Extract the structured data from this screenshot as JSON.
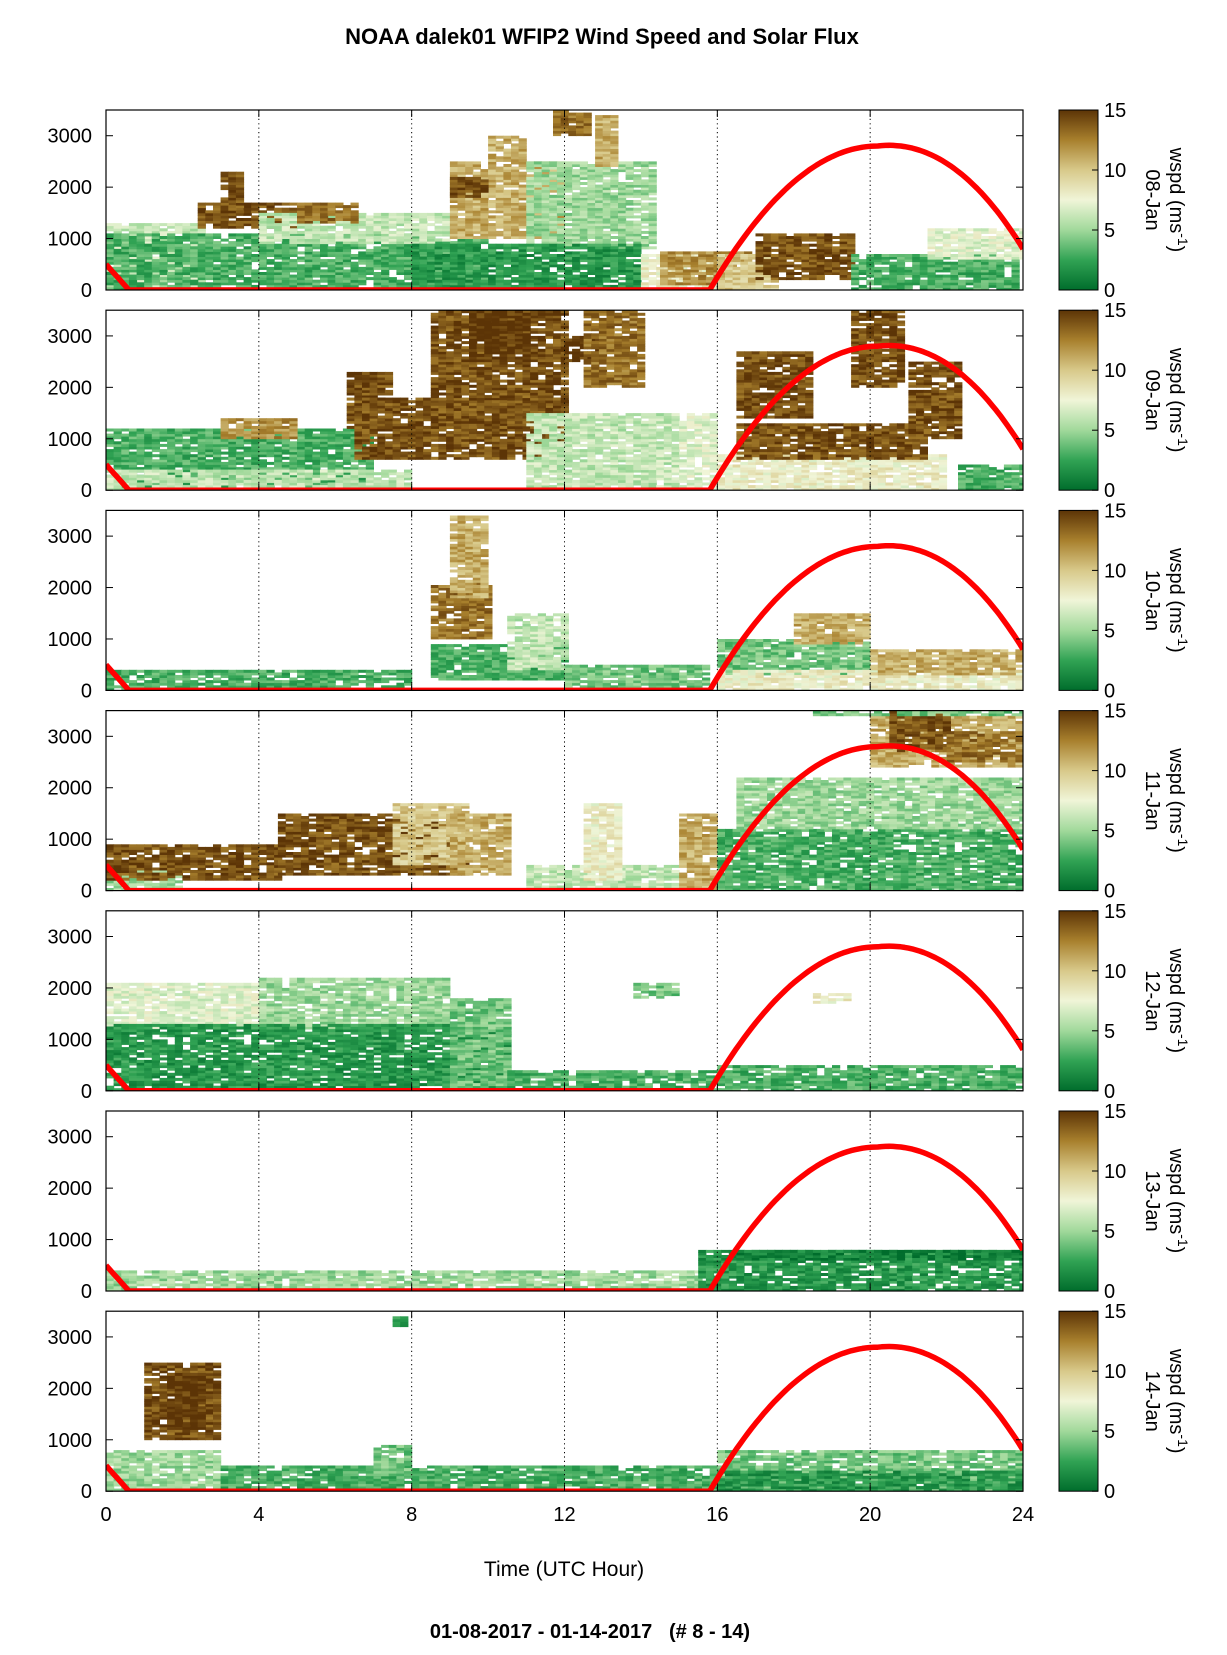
{
  "title": "NOAA dalek01 WFIP2 Wind Speed and Solar Flux",
  "xlabel": "Time (UTC Hour)",
  "footer": "01-08-2017 - 01-14-2017   (# 8 - 14)",
  "colorbar": {
    "label": "wspd (ms",
    "label_sup": "-1",
    "label_close": ")",
    "ticks": [
      "0",
      "5",
      "10",
      "15"
    ],
    "range": [
      0,
      15
    ],
    "colors": [
      "#006d2c",
      "#31a354",
      "#a1d99b",
      "#f0f5d8",
      "#d8c98a",
      "#a8802d",
      "#5c3406"
    ]
  },
  "colors": {
    "solar_flux": "#ff0000",
    "axis": "#000000",
    "grid": "#000000"
  },
  "chart_data": {
    "type": "heatmap",
    "x_range": [
      0,
      24
    ],
    "y_range": [
      0,
      3500
    ],
    "x_ticks": [
      "0",
      "4",
      "8",
      "12",
      "16",
      "20",
      "24"
    ],
    "y_ticks": [
      "0",
      "1000",
      "2000",
      "3000"
    ],
    "grid": "vertical dotted lines every 4 h",
    "overlay": {
      "name": "solar flux",
      "shape": "daytime arc",
      "start_value": 500,
      "zero_at_hour": 0.6,
      "rise_at_hour": 15.8,
      "peak_hour": 20.2,
      "peak_value": 2800,
      "end_value": 800
    },
    "panels": [
      {
        "label": "08-Jan",
        "layers": [
          {
            "x": [
              0,
              2.5
            ],
            "y": [
              0,
              1300
            ],
            "v": 6
          },
          {
            "x": [
              0,
              10
            ],
            "y": [
              0,
              1100
            ],
            "v": 3
          },
          {
            "x": [
              2.4,
              5
            ],
            "y": [
              1200,
              1700
            ],
            "v": 14
          },
          {
            "x": [
              3,
              3.6
            ],
            "y": [
              1500,
              2300
            ],
            "v": 14
          },
          {
            "x": [
              4,
              9
            ],
            "y": [
              900,
              1500
            ],
            "v": 6
          },
          {
            "x": [
              5,
              6.5
            ],
            "y": [
              1300,
              1700
            ],
            "v": 13
          },
          {
            "x": [
              9,
              12
            ],
            "y": [
              1000,
              2500
            ],
            "v": 11
          },
          {
            "x": [
              9,
              10
            ],
            "y": [
              1800,
              2200
            ],
            "v": 14
          },
          {
            "x": [
              10,
              11
            ],
            "y": [
              2500,
              3000
            ],
            "v": 11
          },
          {
            "x": [
              11,
              14.4
            ],
            "y": [
              800,
              2500
            ],
            "v": 5
          },
          {
            "x": [
              11.7,
              12.6
            ],
            "y": [
              3000,
              3500
            ],
            "v": 13
          },
          {
            "x": [
              12.8,
              13.3
            ],
            "y": [
              2400,
              3400
            ],
            "v": 11
          },
          {
            "x": [
              8,
              14
            ],
            "y": [
              0,
              900
            ],
            "v": 2
          },
          {
            "x": [
              14,
              16
            ],
            "y": [
              0,
              700
            ],
            "v": 8
          },
          {
            "x": [
              14.5,
              16.8
            ],
            "y": [
              100,
              750
            ],
            "v": 12
          },
          {
            "x": [
              16,
              17.5
            ],
            "y": [
              0,
              700
            ],
            "v": 10
          },
          {
            "x": [
              17,
              19.5
            ],
            "y": [
              200,
              1100
            ],
            "v": 14
          },
          {
            "x": [
              19.5,
              23.8
            ],
            "y": [
              0,
              700
            ],
            "v": 3
          },
          {
            "x": [
              21.5,
              24
            ],
            "y": [
              600,
              1200
            ],
            "v": 7
          }
        ]
      },
      {
        "label": "09-Jan",
        "layers": [
          {
            "x": [
              0,
              7
            ],
            "y": [
              0,
              1200
            ],
            "v": 3
          },
          {
            "x": [
              0,
              8
            ],
            "y": [
              0,
              400
            ],
            "v": 6
          },
          {
            "x": [
              3,
              5
            ],
            "y": [
              1000,
              1400
            ],
            "v": 12
          },
          {
            "x": [
              6.3,
              7.5
            ],
            "y": [
              1200,
              2300
            ],
            "v": 14
          },
          {
            "x": [
              6.5,
              12
            ],
            "y": [
              600,
              1800
            ],
            "v": 14
          },
          {
            "x": [
              8.5,
              12
            ],
            "y": [
              1200,
              3500
            ],
            "v": 14
          },
          {
            "x": [
              9.5,
              11
            ],
            "y": [
              2500,
              3500
            ],
            "v": 15
          },
          {
            "x": [
              12,
              13
            ],
            "y": [
              2500,
              3000
            ],
            "v": 15
          },
          {
            "x": [
              12.5,
              14
            ],
            "y": [
              2000,
              3500
            ],
            "v": 13
          },
          {
            "x": [
              11,
              15
            ],
            "y": [
              0,
              1500
            ],
            "v": 6
          },
          {
            "x": [
              15,
              16
            ],
            "y": [
              0,
              1500
            ],
            "v": 7
          },
          {
            "x": [
              16,
              22
            ],
            "y": [
              0,
              700
            ],
            "v": 8
          },
          {
            "x": [
              16.5,
              21.5
            ],
            "y": [
              600,
              1300
            ],
            "v": 14
          },
          {
            "x": [
              16.5,
              18.5
            ],
            "y": [
              1400,
              2700
            ],
            "v": 14
          },
          {
            "x": [
              19.5,
              20.8
            ],
            "y": [
              2000,
              3500
            ],
            "v": 14
          },
          {
            "x": [
              21,
              22.3
            ],
            "y": [
              1000,
              2500
            ],
            "v": 14
          },
          {
            "x": [
              22.3,
              24
            ],
            "y": [
              0,
              500
            ],
            "v": 3
          }
        ]
      },
      {
        "label": "10-Jan",
        "layers": [
          {
            "x": [
              0,
              8
            ],
            "y": [
              0,
              400
            ],
            "v": 3
          },
          {
            "x": [
              8.5,
              10
            ],
            "y": [
              1000,
              2100
            ],
            "v": 13
          },
          {
            "x": [
              9,
              10
            ],
            "y": [
              1800,
              3400
            ],
            "v": 11
          },
          {
            "x": [
              8.5,
              12
            ],
            "y": [
              200,
              900
            ],
            "v": 3
          },
          {
            "x": [
              10.5,
              12
            ],
            "y": [
              400,
              1500
            ],
            "v": 6
          },
          {
            "x": [
              12,
              15.8
            ],
            "y": [
              0,
              500
            ],
            "v": 4
          },
          {
            "x": [
              16,
              20
            ],
            "y": [
              300,
              1000
            ],
            "v": 4
          },
          {
            "x": [
              16,
              24
            ],
            "y": [
              0,
              400
            ],
            "v": 8
          },
          {
            "x": [
              18,
              20
            ],
            "y": [
              900,
              1500
            ],
            "v": 11
          },
          {
            "x": [
              20,
              24
            ],
            "y": [
              300,
              800
            ],
            "v": 11
          }
        ]
      },
      {
        "label": "11-Jan",
        "layers": [
          {
            "x": [
              0,
              2
            ],
            "y": [
              0,
              400
            ],
            "v": 5
          },
          {
            "x": [
              0,
              4.5
            ],
            "y": [
              200,
              900
            ],
            "v": 14
          },
          {
            "x": [
              4.5,
              9.5
            ],
            "y": [
              300,
              1500
            ],
            "v": 14
          },
          {
            "x": [
              7.5,
              9.5
            ],
            "y": [
              500,
              1700
            ],
            "v": 10
          },
          {
            "x": [
              9,
              10.5
            ],
            "y": [
              300,
              1500
            ],
            "v": 11
          },
          {
            "x": [
              11,
              15
            ],
            "y": [
              0,
              500
            ],
            "v": 6
          },
          {
            "x": [
              12.5,
              13.5
            ],
            "y": [
              200,
              1700
            ],
            "v": 8
          },
          {
            "x": [
              15,
              16
            ],
            "y": [
              0,
              1500
            ],
            "v": 11
          },
          {
            "x": [
              16,
              24
            ],
            "y": [
              0,
              1200
            ],
            "v": 3
          },
          {
            "x": [
              16.5,
              24
            ],
            "y": [
              1200,
              2200
            ],
            "v": 5
          },
          {
            "x": [
              20,
              24
            ],
            "y": [
              2400,
              3400
            ],
            "v": 11
          },
          {
            "x": [
              20.5,
              22
            ],
            "y": [
              2700,
              3500
            ],
            "v": 14
          },
          {
            "x": [
              22,
              24
            ],
            "y": [
              2500,
              3100
            ],
            "v": 13
          },
          {
            "x": [
              18.5,
              24
            ],
            "y": [
              3400,
              3500
            ],
            "v": 4
          }
        ]
      },
      {
        "label": "12-Jan",
        "layers": [
          {
            "x": [
              0,
              4
            ],
            "y": [
              1200,
              2100
            ],
            "v": 7
          },
          {
            "x": [
              4,
              9
            ],
            "y": [
              1200,
              2200
            ],
            "v": 5
          },
          {
            "x": [
              0,
              10.5
            ],
            "y": [
              0,
              1300
            ],
            "v": 2
          },
          {
            "x": [
              9,
              10.5
            ],
            "y": [
              0,
              1800
            ],
            "v": 4
          },
          {
            "x": [
              10.5,
              16
            ],
            "y": [
              0,
              400
            ],
            "v": 3
          },
          {
            "x": [
              13.8,
              15
            ],
            "y": [
              1800,
              2100
            ],
            "v": 4
          },
          {
            "x": [
              16,
              24
            ],
            "y": [
              0,
              500
            ],
            "v": 3
          },
          {
            "x": [
              18.5,
              19.5
            ],
            "y": [
              1700,
              1900
            ],
            "v": 8
          }
        ]
      },
      {
        "label": "13-Jan",
        "layers": [
          {
            "x": [
              0,
              15.5
            ],
            "y": [
              0,
              400
            ],
            "v": 5
          },
          {
            "x": [
              15.5,
              24
            ],
            "y": [
              0,
              800
            ],
            "v": 2
          },
          {
            "x": [
              16.5,
              24
            ],
            "y": [
              600,
              800
            ],
            "v": 1
          }
        ]
      },
      {
        "label": "14-Jan",
        "layers": [
          {
            "x": [
              0,
              3
            ],
            "y": [
              0,
              800
            ],
            "v": 5
          },
          {
            "x": [
              1,
              3
            ],
            "y": [
              1000,
              2500
            ],
            "v": 14
          },
          {
            "x": [
              1.6,
              2.5
            ],
            "y": [
              1200,
              2300
            ],
            "v": 15
          },
          {
            "x": [
              3,
              16
            ],
            "y": [
              0,
              500
            ],
            "v": 3
          },
          {
            "x": [
              7,
              8
            ],
            "y": [
              300,
              900
            ],
            "v": 4
          },
          {
            "x": [
              7.5,
              7.9
            ],
            "y": [
              3200,
              3400
            ],
            "v": 2
          },
          {
            "x": [
              16,
              24
            ],
            "y": [
              0,
              800
            ],
            "v": 4
          },
          {
            "x": [
              16,
              24
            ],
            "y": [
              0,
              400
            ],
            "v": 2
          }
        ]
      }
    ]
  }
}
